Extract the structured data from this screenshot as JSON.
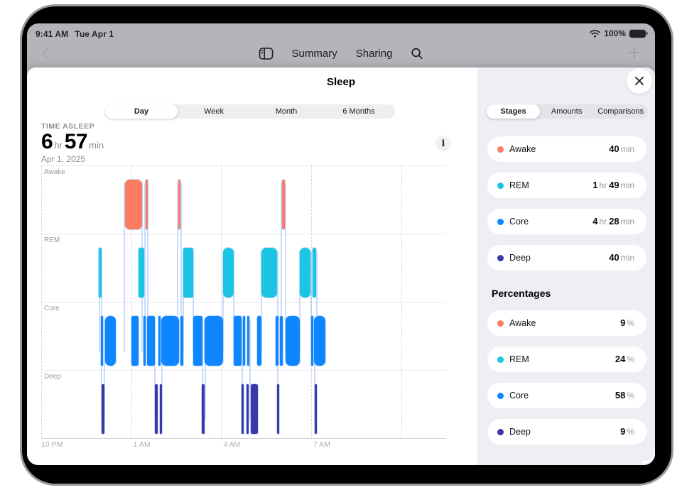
{
  "status_bar": {
    "time": "9:41 AM",
    "date": "Tue Apr 1",
    "battery_percent": "100%"
  },
  "nav_bar": {
    "summary_label": "Summary",
    "sharing_label": "Sharing"
  },
  "sheet": {
    "title": "Sleep"
  },
  "range_selector": {
    "options": [
      "Day",
      "Week",
      "Month",
      "6 Months"
    ],
    "selected": "Day"
  },
  "metric": {
    "label": "TIME ASLEEP",
    "hours": "6",
    "hours_unit": "hr",
    "minutes": "57",
    "minutes_unit": "min",
    "date": "Apr 1, 2025"
  },
  "icons": {
    "info_glyph": "i"
  },
  "colors": {
    "awake": "#FC7B62",
    "rem": "#1BC6E4",
    "core": "#0E86FF",
    "deep": "#3B38A6",
    "connector": "rgba(121,169,243,0.40)"
  },
  "chart_data": {
    "type": "bar",
    "variant": "sleep-stage-hypnogram",
    "title": "Sleep stages by time, Apr 1, 2025 (hours measured from 10 PM)",
    "rows": [
      {
        "label": "Awake",
        "color_key": "awake",
        "segments_hours": [
          [
            2.8,
            3.37
          ],
          [
            3.48,
            3.55
          ],
          [
            4.57,
            4.64
          ],
          [
            8.03,
            8.13
          ]
        ]
      },
      {
        "label": "REM",
        "color_key": "rem",
        "segments_hours": [
          [
            1.92,
            2.01
          ],
          [
            3.25,
            3.44
          ],
          [
            4.74,
            5.07
          ],
          [
            6.07,
            6.42
          ],
          [
            7.35,
            7.87
          ],
          [
            8.63,
            8.98
          ],
          [
            9.05,
            9.17
          ]
        ]
      },
      {
        "label": "Core",
        "color_key": "core",
        "segments_hours": [
          [
            1.99,
            2.04
          ],
          [
            2.13,
            2.49
          ],
          [
            3.01,
            3.25
          ],
          [
            3.41,
            3.46
          ],
          [
            3.53,
            3.79
          ],
          [
            3.91,
            3.96
          ],
          [
            4.01,
            4.6
          ],
          [
            4.64,
            4.74
          ],
          [
            5.07,
            5.38
          ],
          [
            5.45,
            6.07
          ],
          [
            6.42,
            6.68
          ],
          [
            6.73,
            6.8
          ],
          [
            6.87,
            6.94
          ],
          [
            7.2,
            7.35
          ],
          [
            7.82,
            7.91
          ],
          [
            7.96,
            8.06
          ],
          [
            8.15,
            8.63
          ],
          [
            9.0,
            9.05
          ],
          [
            9.1,
            9.48
          ]
        ]
      },
      {
        "label": "Deep",
        "color_key": "deep",
        "segments_hours": [
          [
            2.01,
            2.11
          ],
          [
            3.79,
            3.89
          ],
          [
            3.96,
            4.03
          ],
          [
            5.36,
            5.45
          ],
          [
            6.68,
            6.75
          ],
          [
            6.84,
            6.91
          ],
          [
            6.99,
            7.23
          ],
          [
            7.87,
            7.94
          ],
          [
            9.12,
            9.17
          ]
        ]
      }
    ],
    "x_axis": {
      "hours_span": 13.5,
      "ticks": [
        {
          "label": "10 PM",
          "hour": 0
        },
        {
          "label": "1 AM",
          "hour": 3
        },
        {
          "label": "4 AM",
          "hour": 6
        },
        {
          "label": "7 AM",
          "hour": 9
        }
      ],
      "extra_gridline_hours": [
        12
      ]
    },
    "connectors": [
      {
        "hour": 1.94,
        "from_row": 1,
        "to_row": 2
      },
      {
        "hour": 2.01,
        "from_row": 1,
        "to_row": 3
      },
      {
        "hour": 2.11,
        "from_row": 2,
        "to_row": 3
      },
      {
        "hour": 2.77,
        "from_row": 0,
        "to_row": 2
      },
      {
        "hour": 3.37,
        "from_row": 0,
        "to_row": 2
      },
      {
        "hour": 3.46,
        "from_row": 0,
        "to_row": 2
      },
      {
        "hour": 3.56,
        "from_row": 0,
        "to_row": 2
      },
      {
        "hour": 3.8,
        "from_row": 2,
        "to_row": 3
      },
      {
        "hour": 4.02,
        "from_row": 2,
        "to_row": 3
      },
      {
        "hour": 4.55,
        "from_row": 0,
        "to_row": 2
      },
      {
        "hour": 4.66,
        "from_row": 0,
        "to_row": 2
      },
      {
        "hour": 4.73,
        "from_row": 1,
        "to_row": 2
      },
      {
        "hour": 5.08,
        "from_row": 1,
        "to_row": 2
      },
      {
        "hour": 5.37,
        "from_row": 2,
        "to_row": 3
      },
      {
        "hour": 5.46,
        "from_row": 2,
        "to_row": 3
      },
      {
        "hour": 6.06,
        "from_row": 1,
        "to_row": 2
      },
      {
        "hour": 6.43,
        "from_row": 1,
        "to_row": 2
      },
      {
        "hour": 6.7,
        "from_row": 2,
        "to_row": 3
      },
      {
        "hour": 6.97,
        "from_row": 2,
        "to_row": 3
      },
      {
        "hour": 7.34,
        "from_row": 1,
        "to_row": 2
      },
      {
        "hour": 7.88,
        "from_row": 1,
        "to_row": 3
      },
      {
        "hour": 8.01,
        "from_row": 0,
        "to_row": 2
      },
      {
        "hour": 8.15,
        "from_row": 0,
        "to_row": 2
      },
      {
        "hour": 8.62,
        "from_row": 1,
        "to_row": 2
      },
      {
        "hour": 9.0,
        "from_row": 1,
        "to_row": 2
      },
      {
        "hour": 9.12,
        "from_row": 2,
        "to_row": 3
      },
      {
        "hour": 9.18,
        "from_row": 1,
        "to_row": 2
      }
    ]
  },
  "panel": {
    "tabs": {
      "options": [
        "Stages",
        "Amounts",
        "Comparisons"
      ],
      "selected": "Stages"
    },
    "durations": [
      {
        "label": "Awake",
        "color_key": "awake",
        "parts": [
          {
            "n": "40",
            "u": "min"
          }
        ]
      },
      {
        "label": "REM",
        "color_key": "rem",
        "parts": [
          {
            "n": "1",
            "u": "hr"
          },
          {
            "n": "49",
            "u": "min"
          }
        ]
      },
      {
        "label": "Core",
        "color_key": "core",
        "parts": [
          {
            "n": "4",
            "u": "hr"
          },
          {
            "n": "28",
            "u": "min"
          }
        ]
      },
      {
        "label": "Deep",
        "color_key": "deep",
        "parts": [
          {
            "n": "40",
            "u": "min"
          }
        ]
      }
    ],
    "percent_heading": "Percentages",
    "percentages": [
      {
        "label": "Awake",
        "color_key": "awake",
        "parts": [
          {
            "n": "9",
            "u": "%"
          }
        ]
      },
      {
        "label": "REM",
        "color_key": "rem",
        "parts": [
          {
            "n": "24",
            "u": "%"
          }
        ]
      },
      {
        "label": "Core",
        "color_key": "core",
        "parts": [
          {
            "n": "58",
            "u": "%"
          }
        ]
      },
      {
        "label": "Deep",
        "color_key": "deep",
        "parts": [
          {
            "n": "9",
            "u": "%"
          }
        ]
      }
    ]
  }
}
